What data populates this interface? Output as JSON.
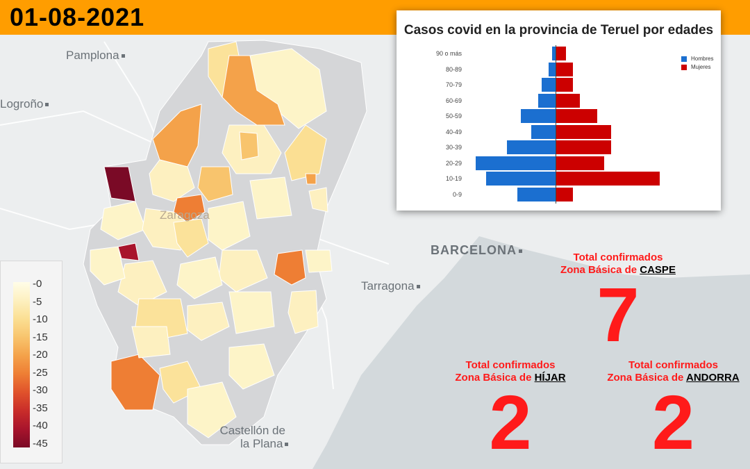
{
  "header": {
    "date": "01-08-2021"
  },
  "cities": {
    "pamplona": "Pamplona",
    "logrono": "Logroño",
    "barcelona": "BARCELONA",
    "tarragona": "Tarragona",
    "zaragoza": "Zaragoza",
    "castellon_1": "Castellón de",
    "castellon_2": "la Plana"
  },
  "legend": {
    "labels": [
      "0",
      "5",
      "10",
      "15",
      "20",
      "25",
      "30",
      "35",
      "40",
      "45"
    ],
    "colors": [
      "#fffde8",
      "#fdf0c0",
      "#fbdf93",
      "#f8c46d",
      "#f4a24a",
      "#ee7e34",
      "#e0522b",
      "#c92d2a",
      "#a8142c",
      "#7a0a26"
    ]
  },
  "chart_data": {
    "type": "bar",
    "title": "Casos covid en la provincia de Teruel por edades",
    "categories": [
      "90 o más",
      "80-89",
      "70-79",
      "60-69",
      "50-59",
      "40-49",
      "30-39",
      "20-29",
      "10-19",
      "0-9"
    ],
    "series": [
      {
        "name": "Hombres",
        "color": "#1b6fd0",
        "values": [
          1,
          2,
          4,
          5,
          10,
          7,
          14,
          23,
          20,
          11
        ]
      },
      {
        "name": "Mujeres",
        "color": "#cc0000",
        "values": [
          3,
          5,
          5,
          7,
          12,
          16,
          16,
          14,
          30,
          5
        ]
      }
    ]
  },
  "totals": [
    {
      "line1": "Total confirmados",
      "line2_prefix": "Zona Básica de",
      "zone": "CASPE",
      "value": "7"
    },
    {
      "line1": "Total confirmados",
      "line2_prefix": "Zona Básica de",
      "zone": "HÍJAR",
      "value": "2"
    },
    {
      "line1": "Total confirmados",
      "line2_prefix": "Zona Básica de",
      "zone": "ANDORRA",
      "value": "2"
    }
  ]
}
